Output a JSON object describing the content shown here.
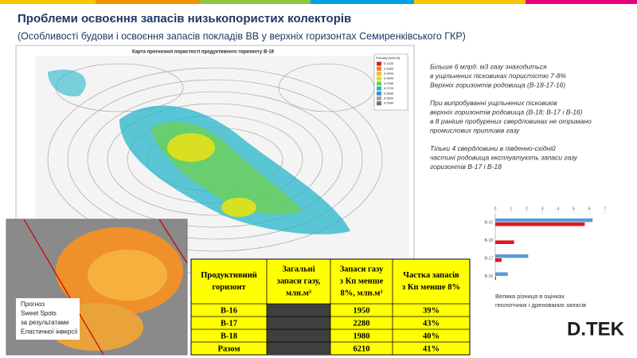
{
  "header": {
    "title": "Проблеми освоєння запасів низькопористих колекторів",
    "subtitle": "(Особливості будови і освоєння запасів покладів ВВ у верхніх горизонтах Семиренківського ГКР)"
  },
  "map": {
    "title": "Карта прогнозної пористості продуктивного горизонту В-18",
    "legend_title": "Porosity [m3/m3]",
    "legend": [
      "0.1020",
      "0.0960",
      "0.0900",
      "0.0840",
      "0.0780",
      "0.0720",
      "0.0660",
      "0.0600",
      "0.0540"
    ]
  },
  "notes": [
    [
      "Більше 6 млрд. м3 газу знаходиться",
      "в ущільнених пісковиках пористістю 7-8%",
      "Верхніх горизонтів родовища (В-18-17-16)"
    ],
    [
      "При випробуванні ущільнених пісковиків",
      "верхніх горизонтів родовища (В-18; В-17 і В-16)",
      " в 8 раніше пробурених свердловинах не отримано",
      "промислових припливів газу"
    ],
    [
      "Тільки 4 свердловини в південно-східній",
      "частині родовища експлуатують запаси газу",
      "горизонтів В-17 і В-18"
    ]
  ],
  "chart_data": {
    "type": "bar",
    "orientation": "horizontal",
    "categories": [
      "В-15",
      "В-18",
      "В-17",
      "В-16"
    ],
    "series": [
      {
        "color": "#5b9bd5",
        "values": [
          6.2,
          null,
          2.1,
          0.8
        ]
      },
      {
        "color": "#e0161e",
        "values": [
          5.7,
          1.2,
          0.4,
          0.05
        ]
      }
    ],
    "xlim": [
      0,
      7
    ],
    "xticks": [
      0,
      1,
      2,
      3,
      4,
      5,
      6,
      7
    ],
    "caption": [
      "Велика різниця в оцінках",
      "геологічних і дренованих запасів"
    ]
  },
  "table": {
    "header": [
      [
        "Продуктивний",
        "горизонт"
      ],
      [
        "Загальні",
        "запаси газу,",
        "млн.м³"
      ],
      [
        "Запаси газу",
        "з Кп менше",
        "8%, млн.м³"
      ],
      [
        "Частка запасів",
        "з Кп менше 8%"
      ]
    ],
    "rows": [
      [
        "В-16",
        "",
        "1950",
        "39%"
      ],
      [
        "В-17",
        "",
        "2280",
        "43%"
      ],
      [
        "В-18",
        "",
        "1980",
        "40%"
      ],
      [
        "Разом",
        "",
        "6210",
        "41%"
      ]
    ]
  },
  "inset": {
    "caption": [
      "Прогноз",
      "Sweet Spots",
      "за результатами",
      "Еластичної інверсії"
    ]
  },
  "logo": "D.TEK"
}
